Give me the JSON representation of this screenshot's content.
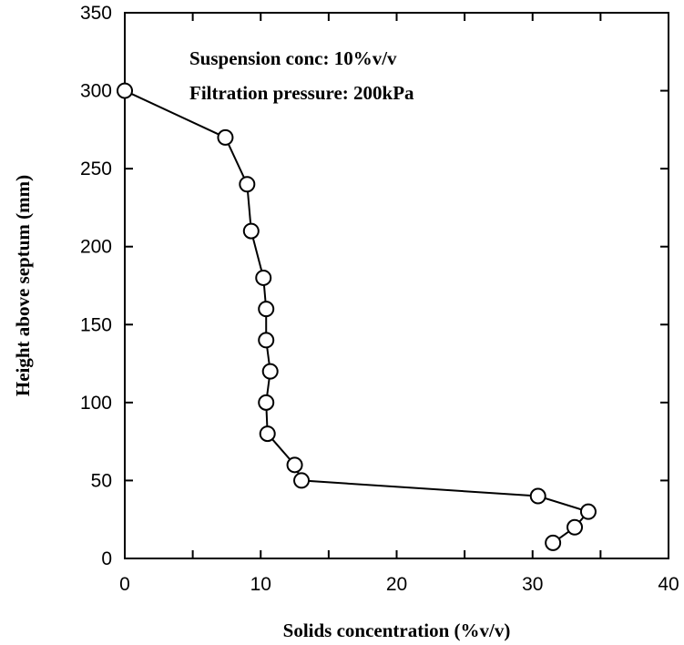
{
  "chart_data": {
    "type": "line",
    "xlabel": "Solids concentration (%v/v)",
    "ylabel": "Height above septum (mm)",
    "xlim": [
      0,
      40
    ],
    "ylim": [
      0,
      350
    ],
    "xticks": [
      0,
      10,
      20,
      30,
      40
    ],
    "yticks": [
      0,
      50,
      100,
      150,
      200,
      250,
      300,
      350
    ],
    "grid": false,
    "annotations": [
      "Suspension conc: 10%v/v",
      "Filtration pressure: 200kPa"
    ],
    "series": [
      {
        "marker": "open-circle",
        "x": [
          0.0,
          7.4,
          9.0,
          9.3,
          10.2,
          10.4,
          10.4,
          10.7,
          10.4,
          10.5,
          12.5,
          13.0,
          30.4,
          34.1,
          33.1,
          31.5
        ],
        "y": [
          300,
          270,
          240,
          210,
          180,
          160,
          140,
          120,
          100,
          80,
          60,
          50,
          40,
          30,
          20,
          10
        ]
      }
    ]
  }
}
